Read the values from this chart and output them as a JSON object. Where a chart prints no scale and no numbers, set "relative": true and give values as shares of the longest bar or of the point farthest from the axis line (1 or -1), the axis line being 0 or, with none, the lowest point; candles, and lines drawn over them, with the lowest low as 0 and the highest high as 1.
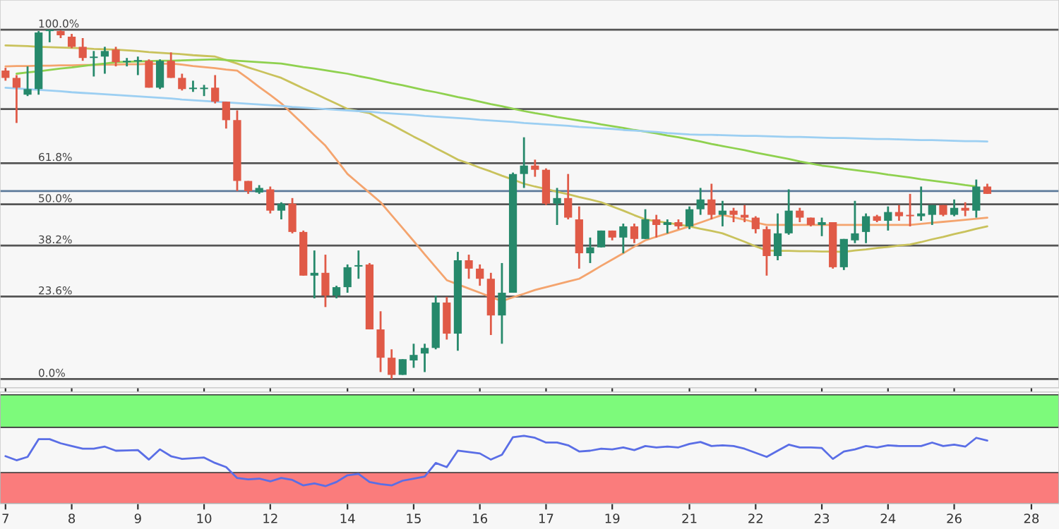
{
  "chart_data": [
    {
      "type": "candlestick",
      "relative": true,
      "tick_labels": false,
      "categories": [
        "7",
        null,
        null,
        null,
        null,
        null,
        "8",
        null,
        null,
        null,
        null,
        null,
        "9",
        null,
        null,
        null,
        null,
        null,
        "10",
        null,
        null,
        null,
        null,
        null,
        "12",
        null,
        null,
        null,
        null,
        null,
        null,
        "14",
        null,
        null,
        null,
        null,
        null,
        "15",
        null,
        null,
        null,
        null,
        null,
        "16",
        null,
        null,
        null,
        null,
        null,
        "17",
        null,
        null,
        null,
        null,
        null,
        "19",
        null,
        null,
        null,
        null,
        null,
        null,
        "21",
        null,
        null,
        null,
        null,
        null,
        "22",
        null,
        null,
        null,
        null,
        null,
        "23",
        null,
        null,
        null,
        null,
        null,
        "24",
        null,
        null,
        null,
        null,
        null,
        "26",
        null,
        null,
        null,
        null,
        null,
        null,
        "28",
        null,
        null
      ],
      "ohlc": [
        [
          0.883,
          0.891,
          0.854,
          0.862
        ],
        [
          0.862,
          0.87,
          0.733,
          0.834
        ],
        [
          0.814,
          0.895,
          0.81,
          0.83
        ],
        [
          0.83,
          0.996,
          0.814,
          0.992
        ],
        [
          0.996,
          1,
          0.964,
          0.998
        ],
        [
          0.996,
          0.998,
          0.976,
          0.984
        ],
        [
          0.98,
          0.988,
          0.947,
          0.951
        ],
        [
          0.951,
          0.976,
          0.911,
          0.919
        ],
        [
          0.919,
          0.939,
          0.866,
          0.923
        ],
        [
          0.923,
          0.951,
          0.874,
          0.939
        ],
        [
          0.943,
          0.951,
          0.895,
          0.907
        ],
        [
          0.907,
          0.919,
          0.895,
          0.909
        ],
        [
          0.909,
          0.923,
          0.87,
          0.911
        ],
        [
          0.911,
          0.915,
          0.834,
          0.834
        ],
        [
          0.834,
          0.915,
          0.83,
          0.911
        ],
        [
          0.911,
          0.935,
          0.862,
          0.862
        ],
        [
          0.862,
          0.874,
          0.826,
          0.83
        ],
        [
          0.83,
          0.854,
          0.822,
          0.832
        ],
        [
          0.83,
          0.842,
          0.81,
          0.834
        ],
        [
          0.834,
          0.87,
          0.789,
          0.794
        ],
        [
          0.794,
          0.794,
          0.717,
          0.741
        ],
        [
          0.741,
          0.769,
          0.538,
          0.567
        ],
        [
          0.567,
          0.567,
          0.53,
          0.538
        ],
        [
          0.534,
          0.555,
          0.53,
          0.547
        ],
        [
          0.543,
          0.551,
          0.474,
          0.482
        ],
        [
          0.482,
          0.506,
          0.457,
          0.502
        ],
        [
          0.502,
          0.518,
          0.417,
          0.421
        ],
        [
          0.421,
          0.425,
          0.296,
          0.296
        ],
        [
          0.296,
          0.368,
          0.231,
          0.304
        ],
        [
          0.304,
          0.356,
          0.206,
          0.239
        ],
        [
          0.239,
          0.267,
          0.231,
          0.263
        ],
        [
          0.263,
          0.328,
          0.247,
          0.32
        ],
        [
          0.322,
          0.368,
          0.287,
          0.324
        ],
        [
          0.328,
          0.332,
          0.142,
          0.142
        ],
        [
          0.142,
          0.194,
          0.02,
          0.061
        ],
        [
          0.061,
          0.085,
          0,
          0.012
        ],
        [
          0.012,
          0.057,
          0.012,
          0.057
        ],
        [
          0.053,
          0.101,
          0.032,
          0.069
        ],
        [
          0.073,
          0.101,
          0.02,
          0.089
        ],
        [
          0.089,
          0.239,
          0.085,
          0.219
        ],
        [
          0.219,
          0.235,
          0.113,
          0.13
        ],
        [
          0.13,
          0.364,
          0.081,
          0.34
        ],
        [
          0.34,
          0.356,
          0.287,
          0.316
        ],
        [
          0.316,
          0.328,
          0.267,
          0.287
        ],
        [
          0.287,
          0.304,
          0.126,
          0.182
        ],
        [
          0.182,
          0.332,
          0.101,
          0.247
        ],
        [
          0.247,
          0.591,
          0.247,
          0.587
        ],
        [
          0.587,
          0.692,
          0.547,
          0.611
        ],
        [
          0.611,
          0.628,
          0.579,
          0.599
        ],
        [
          0.599,
          0.603,
          0.498,
          0.502
        ],
        [
          0.502,
          0.547,
          0.441,
          0.518
        ],
        [
          0.518,
          0.587,
          0.457,
          0.462
        ],
        [
          0.457,
          0.494,
          0.316,
          0.36
        ],
        [
          0.36,
          0.405,
          0.332,
          0.377
        ],
        [
          0.377,
          0.425,
          0.377,
          0.425
        ],
        [
          0.425,
          0.425,
          0.397,
          0.405
        ],
        [
          0.405,
          0.445,
          0.36,
          0.437
        ],
        [
          0.437,
          0.445,
          0.389,
          0.401
        ],
        [
          0.401,
          0.486,
          0.401,
          0.457
        ],
        [
          0.457,
          0.47,
          0.405,
          0.441
        ],
        [
          0.441,
          0.457,
          0.417,
          0.449
        ],
        [
          0.449,
          0.457,
          0.429,
          0.437
        ],
        [
          0.437,
          0.494,
          0.429,
          0.486
        ],
        [
          0.486,
          0.547,
          0.47,
          0.514
        ],
        [
          0.514,
          0.559,
          0.457,
          0.47
        ],
        [
          0.47,
          0.51,
          0.437,
          0.482
        ],
        [
          0.482,
          0.49,
          0.449,
          0.47
        ],
        [
          0.47,
          0.498,
          0.449,
          0.462
        ],
        [
          0.462,
          0.466,
          0.417,
          0.429
        ],
        [
          0.429,
          0.437,
          0.296,
          0.352
        ],
        [
          0.352,
          0.474,
          0.34,
          0.417
        ],
        [
          0.417,
          0.543,
          0.413,
          0.482
        ],
        [
          0.482,
          0.49,
          0.449,
          0.462
        ],
        [
          0.462,
          0.462,
          0.437,
          0.441
        ],
        [
          0.441,
          0.462,
          0.409,
          0.449
        ],
        [
          0.449,
          0.449,
          0.316,
          0.32
        ],
        [
          0.32,
          0.401,
          0.312,
          0.401
        ],
        [
          0.397,
          0.51,
          0.389,
          0.417
        ],
        [
          0.421,
          0.474,
          0.389,
          0.466
        ],
        [
          0.466,
          0.47,
          0.449,
          0.453
        ],
        [
          0.453,
          0.494,
          0.425,
          0.478
        ],
        [
          0.478,
          0.498,
          0.453,
          0.466
        ],
        [
          0.47,
          0.53,
          0.437,
          0.466
        ],
        [
          0.466,
          0.551,
          0.453,
          0.474
        ],
        [
          0.47,
          0.498,
          0.441,
          0.498
        ],
        [
          0.498,
          0.498,
          0.466,
          0.47
        ],
        [
          0.47,
          0.514,
          0.466,
          0.49
        ],
        [
          0.49,
          0.506,
          0.466,
          0.482
        ],
        [
          0.482,
          0.571,
          0.462,
          0.551
        ],
        [
          0.551,
          0.559,
          0.53,
          0.53
        ],
        null,
        null,
        null,
        null,
        null,
        null
      ],
      "colors": [
        "#e05a47",
        "#e05a47",
        "#26896b",
        "#26896b",
        "#26896b",
        "#e05a47",
        "#e05a47",
        "#e05a47",
        "#26896b",
        "#26896b",
        "#e05a47",
        "#26896b",
        "#26896b",
        "#e05a47",
        "#26896b",
        "#e05a47",
        "#e05a47",
        "#26896b",
        "#26896b",
        "#e05a47",
        "#e05a47",
        "#e05a47",
        "#e05a47",
        "#26896b",
        "#e05a47",
        "#26896b",
        "#e05a47",
        "#e05a47",
        "#26896b",
        "#e05a47",
        "#26896b",
        "#26896b",
        "#26896b",
        "#e05a47",
        "#e05a47",
        "#e05a47",
        "#26896b",
        "#26896b",
        "#26896b",
        "#26896b",
        "#e05a47",
        "#26896b",
        "#e05a47",
        "#e05a47",
        "#e05a47",
        "#26896b",
        "#26896b",
        "#26896b",
        "#e05a47",
        "#e05a47",
        "#26896b",
        "#e05a47",
        "#e05a47",
        "#26896b",
        "#26896b",
        "#e05a47",
        "#26896b",
        "#e05a47",
        "#26896b",
        "#e05a47",
        "#26896b",
        "#e05a47",
        "#26896b",
        "#26896b",
        "#e05a47",
        "#26896b",
        "#e05a47",
        "#e05a47",
        "#e05a47",
        "#e05a47",
        "#26896b",
        "#26896b",
        "#e05a47",
        "#e05a47",
        "#26896b",
        "#e05a47",
        "#26896b",
        "#26896b",
        "#26896b",
        "#e05a47",
        "#26896b",
        "#e05a47",
        "#e05a47",
        "#26896b",
        "#26896b",
        "#e05a47",
        "#26896b",
        "#e05a47",
        "#26896b",
        "#e05a47",
        null,
        null,
        null,
        null,
        null,
        null
      ],
      "series": [
        {
          "type": "line",
          "color": "#f4a46e",
          "values": [
            0.895,
            0.896,
            0.896,
            0.897,
            0.897,
            0.898,
            0.898,
            0.899,
            0.899,
            0.9,
            0.9,
            0.901,
            0.901,
            0.902,
            0.902,
            0.903,
            0.9,
            0.896,
            0.893,
            0.89,
            0.886,
            0.883,
            0.86,
            0.836,
            0.813,
            0.789,
            0.759,
            0.729,
            0.698,
            0.668,
            0.628,
            0.587,
            0.56,
            0.533,
            0.506,
            0.469,
            0.432,
            0.395,
            0.357,
            0.32,
            0.283,
            0.271,
            0.259,
            0.247,
            0.235,
            0.223,
            0.234,
            0.244,
            0.255,
            0.263,
            0.271,
            0.279,
            0.287,
            0.305,
            0.324,
            0.342,
            0.36,
            0.379,
            0.397,
            0.407,
            0.417,
            0.427,
            0.437,
            0.448,
            0.459,
            0.47,
            0.463,
            0.456,
            0.448,
            0.441,
            0.441,
            0.441,
            0.441,
            0.441,
            0.441,
            0.441,
            0.441,
            0.441,
            0.441,
            0.441,
            0.441,
            0.441,
            0.441,
            0.444,
            0.447,
            0.45,
            0.453,
            0.456,
            0.459,
            0.462,
            null,
            null,
            null,
            null,
            null,
            null
          ]
        },
        {
          "type": "line",
          "color": "#c9c25c",
          "values": [
            0.955,
            0.954,
            0.953,
            0.951,
            0.95,
            0.949,
            0.948,
            0.947,
            0.945,
            0.944,
            0.943,
            0.941,
            0.939,
            0.936,
            0.934,
            0.932,
            0.93,
            0.927,
            0.925,
            0.923,
            0.913,
            0.903,
            0.892,
            0.882,
            0.872,
            0.862,
            0.847,
            0.832,
            0.818,
            0.803,
            0.788,
            0.773,
            0.767,
            0.761,
            0.744,
            0.728,
            0.711,
            0.694,
            0.678,
            0.661,
            0.645,
            0.628,
            0.617,
            0.605,
            0.594,
            0.582,
            0.571,
            0.559,
            0.551,
            0.544,
            0.536,
            0.529,
            0.521,
            0.514,
            0.506,
            0.494,
            0.482,
            0.469,
            0.457,
            0.452,
            0.447,
            0.442,
            0.437,
            0.43,
            0.424,
            0.417,
            0.405,
            0.393,
            0.38,
            0.368,
            0.367,
            0.367,
            0.366,
            0.366,
            0.365,
            0.365,
            0.364,
            0.368,
            0.371,
            0.375,
            0.378,
            0.382,
            0.385,
            0.392,
            0.4,
            0.407,
            0.415,
            0.422,
            0.43,
            0.437,
            null,
            null,
            null,
            null,
            null,
            null
          ]
        },
        {
          "type": "line",
          "color": "#8fd14f",
          "values": [
            null,
            0.874,
            0.878,
            0.881,
            0.885,
            0.889,
            0.892,
            0.896,
            0.9,
            0.903,
            0.907,
            0.908,
            0.909,
            0.91,
            0.911,
            0.911,
            0.912,
            0.913,
            0.914,
            0.915,
            0.913,
            0.911,
            0.909,
            0.907,
            0.905,
            0.903,
            0.898,
            0.893,
            0.889,
            0.884,
            0.879,
            0.874,
            0.867,
            0.861,
            0.854,
            0.847,
            0.841,
            0.834,
            0.827,
            0.821,
            0.814,
            0.807,
            0.801,
            0.794,
            0.787,
            0.781,
            0.774,
            0.767,
            0.761,
            0.756,
            0.75,
            0.745,
            0.74,
            0.735,
            0.729,
            0.724,
            0.719,
            0.713,
            0.708,
            0.703,
            0.697,
            0.692,
            0.686,
            0.68,
            0.673,
            0.667,
            0.661,
            0.655,
            0.648,
            0.642,
            0.636,
            0.63,
            0.623,
            0.617,
            0.611,
            0.607,
            0.602,
            0.598,
            0.594,
            0.59,
            0.585,
            0.581,
            0.577,
            0.572,
            0.568,
            0.564,
            0.56,
            0.555,
            0.551,
            null,
            null,
            null,
            null,
            null,
            null,
            null
          ]
        },
        {
          "type": "line",
          "color": "#9ccff2",
          "values": [
            0.834,
            0.832,
            0.83,
            0.828,
            0.826,
            0.824,
            0.821,
            0.819,
            0.817,
            0.815,
            0.813,
            0.811,
            0.809,
            0.807,
            0.805,
            0.803,
            0.8,
            0.798,
            0.796,
            0.794,
            0.792,
            0.79,
            0.788,
            0.786,
            0.784,
            0.782,
            0.779,
            0.777,
            0.775,
            0.773,
            0.771,
            0.769,
            0.767,
            0.765,
            0.762,
            0.76,
            0.758,
            0.756,
            0.753,
            0.751,
            0.749,
            0.747,
            0.745,
            0.742,
            0.74,
            0.738,
            0.736,
            0.733,
            0.731,
            0.729,
            0.727,
            0.725,
            0.722,
            0.72,
            0.718,
            0.716,
            0.713,
            0.711,
            0.709,
            0.707,
            0.704,
            0.702,
            0.7,
            0.699,
            0.699,
            0.698,
            0.697,
            0.696,
            0.696,
            0.695,
            0.694,
            0.693,
            0.693,
            0.692,
            0.691,
            0.69,
            0.69,
            0.689,
            0.688,
            0.687,
            0.687,
            0.686,
            0.685,
            0.684,
            0.684,
            0.683,
            0.682,
            0.681,
            0.681,
            0.68,
            null,
            null,
            null,
            null,
            null,
            null
          ]
        }
      ],
      "ref_lines": [
        {
          "axis": "y",
          "value": 1,
          "label": "100.0%",
          "color": "#555555"
        },
        {
          "axis": "y",
          "value": 0.773,
          "label": null,
          "color": "#555555"
        },
        {
          "axis": "y",
          "value": 0.618,
          "label": "61.8%",
          "color": "#555555"
        },
        {
          "axis": "y",
          "value": 0.538,
          "label": null,
          "color": "#5c7a9a"
        },
        {
          "axis": "y",
          "value": 0.5,
          "label": "50.0%",
          "color": "#555555"
        },
        {
          "axis": "y",
          "value": 0.382,
          "label": "38.2%",
          "color": "#555555"
        },
        {
          "axis": "y",
          "value": 0.236,
          "label": "23.6%",
          "color": "#555555"
        },
        {
          "axis": "y",
          "value": 0,
          "label": "0.0%",
          "color": "#555555"
        }
      ]
    },
    {
      "type": "line",
      "relative": true,
      "tick_labels": "x",
      "categories": [
        "7",
        null,
        null,
        null,
        null,
        null,
        "8",
        null,
        null,
        null,
        null,
        null,
        "9",
        null,
        null,
        null,
        null,
        null,
        "10",
        null,
        null,
        null,
        null,
        null,
        "12",
        null,
        null,
        null,
        null,
        null,
        null,
        "14",
        null,
        null,
        null,
        null,
        null,
        "15",
        null,
        null,
        null,
        null,
        null,
        "16",
        null,
        null,
        null,
        null,
        null,
        "17",
        null,
        null,
        null,
        null,
        null,
        "19",
        null,
        null,
        null,
        null,
        null,
        null,
        "21",
        null,
        null,
        null,
        null,
        null,
        "22",
        null,
        null,
        null,
        null,
        null,
        "23",
        null,
        null,
        null,
        null,
        null,
        "24",
        null,
        null,
        null,
        null,
        null,
        "26",
        null,
        null,
        null,
        null,
        null,
        null,
        "28",
        null,
        null
      ],
      "bands": [
        {
          "axis": "y",
          "from": 1.125,
          "to": 1.604,
          "color": "#7dfa7b"
        },
        {
          "axis": "y",
          "from": 0,
          "to": 0.458,
          "color": "#fa7c7c"
        }
      ],
      "series": [
        {
          "type": "line",
          "color": "#5a6ee6",
          "values": [
            0.699,
            0.639,
            0.689,
            0.95,
            0.95,
            0.889,
            0.849,
            0.809,
            0.809,
            0.84,
            0.78,
            0.784,
            0.789,
            0.649,
            0.8,
            0.699,
            0.659,
            0.669,
            0.679,
            0.599,
            0.538,
            0.378,
            0.358,
            0.369,
            0.328,
            0.378,
            0.349,
            0.268,
            0.298,
            0.258,
            0.318,
            0.418,
            0.438,
            0.318,
            0.288,
            0.268,
            0.338,
            0.369,
            0.398,
            0.599,
            0.538,
            0.78,
            0.76,
            0.74,
            0.649,
            0.72,
            0.98,
            1,
            0.97,
            0.9,
            0.9,
            0.86,
            0.769,
            0.78,
            0.809,
            0.8,
            0.829,
            0.789,
            0.849,
            0.829,
            0.84,
            0.829,
            0.88,
            0.909,
            0.849,
            0.86,
            0.849,
            0.809,
            0.749,
            0.689,
            0.78,
            0.869,
            0.829,
            0.829,
            0.82,
            0.659,
            0.769,
            0.8,
            0.849,
            0.829,
            0.86,
            0.849,
            0.849,
            0.849,
            0.9,
            0.849,
            0.869,
            0.84,
            0.97,
            0.93,
            null,
            null,
            null,
            null,
            null,
            null
          ]
        }
      ]
    }
  ]
}
